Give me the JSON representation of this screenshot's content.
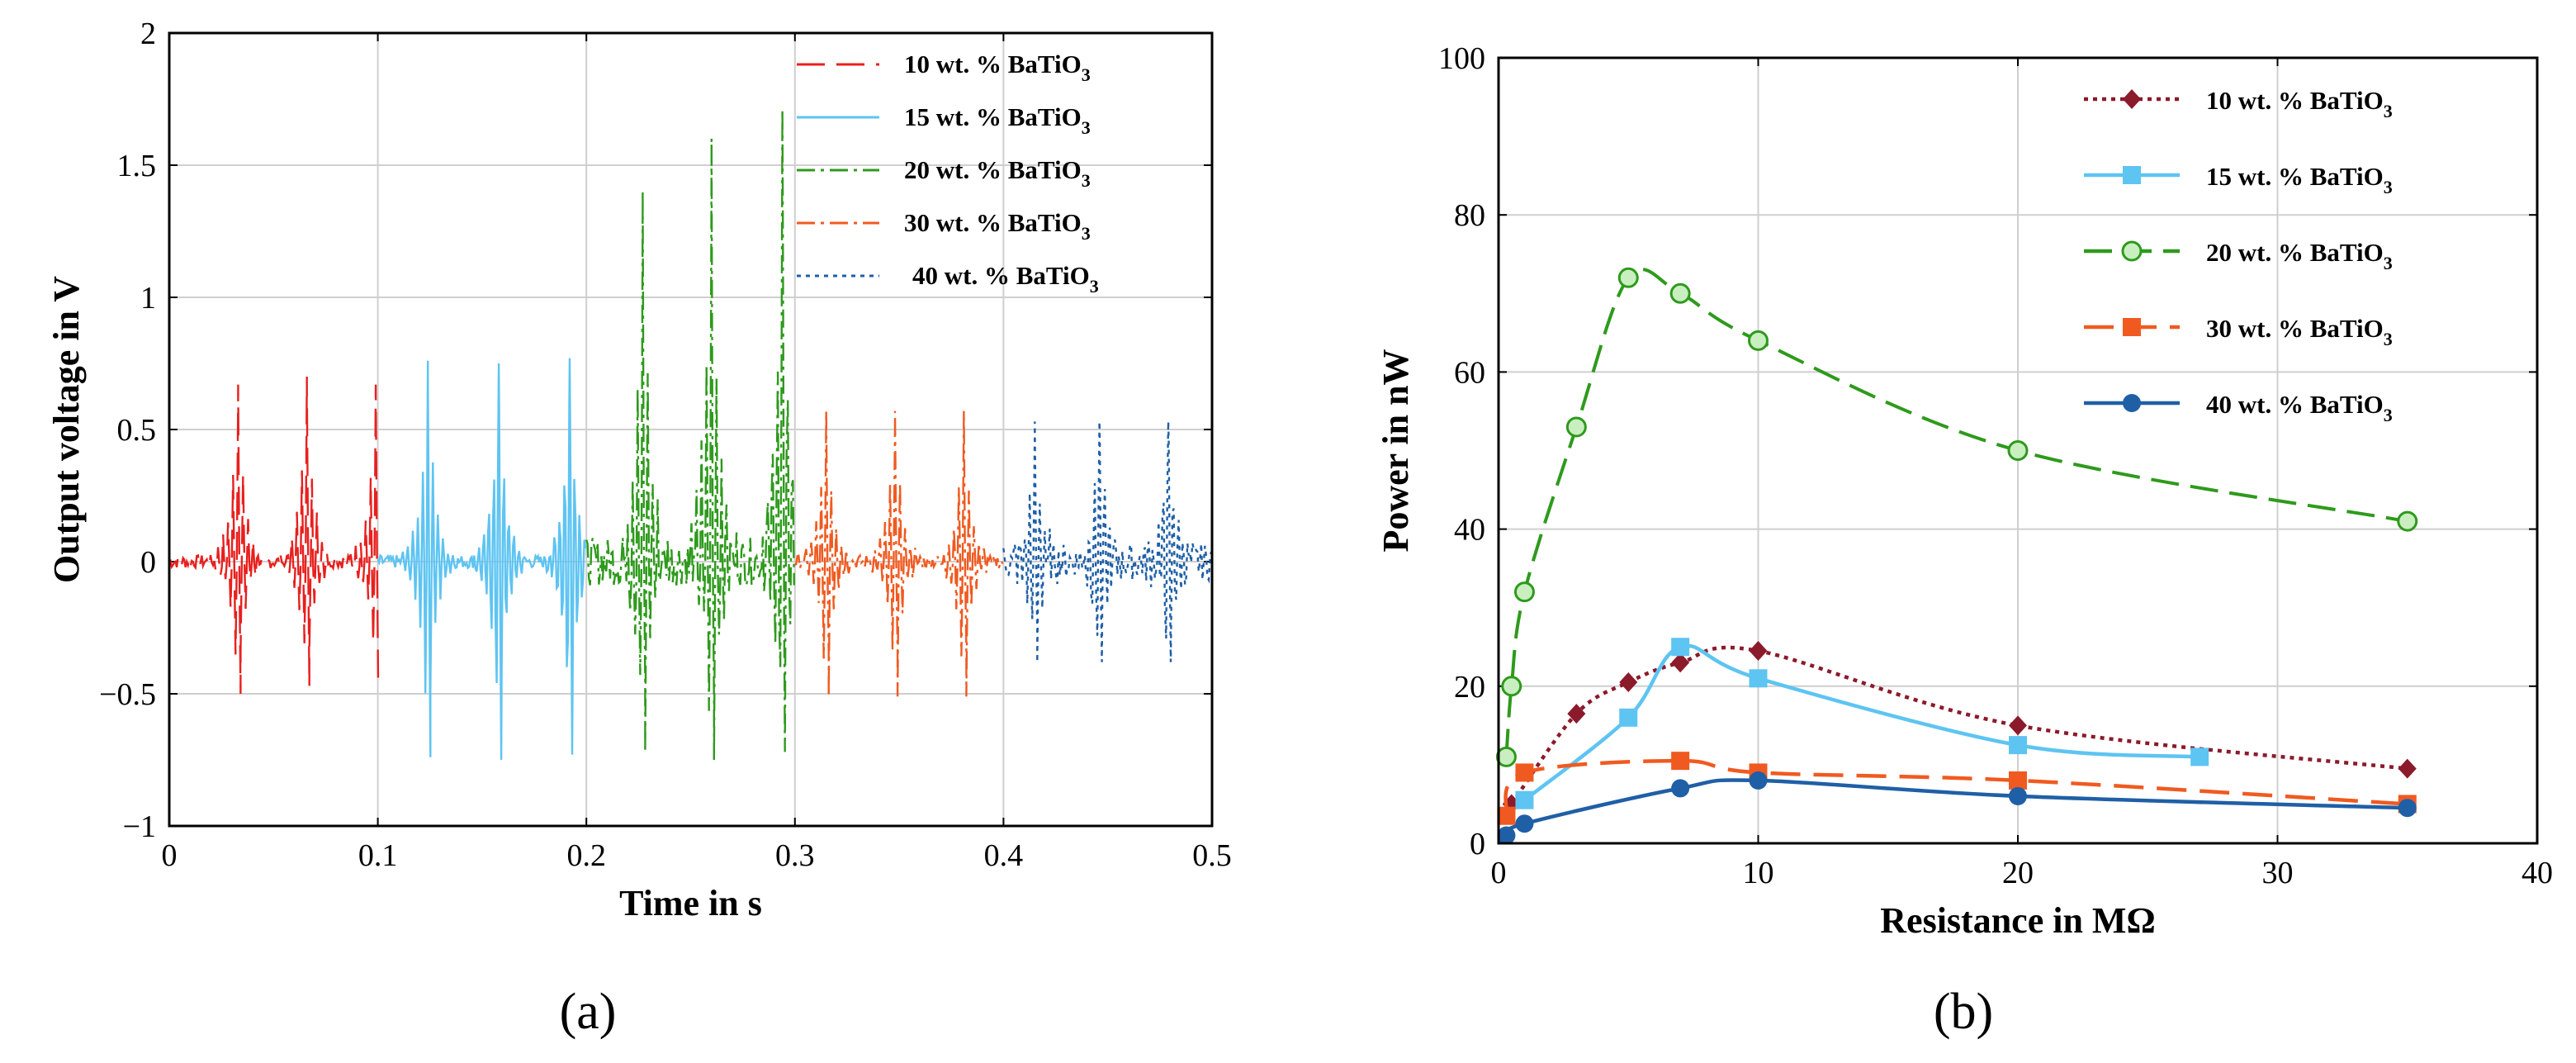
{
  "chart_data": [
    {
      "panel": "a",
      "type": "line",
      "xlabel": "Time in s",
      "ylabel": "Output voltage in V",
      "xlim": [
        0,
        0.5
      ],
      "ylim": [
        -1,
        2
      ],
      "xticks": [
        "0",
        "0.1",
        "0.2",
        "0.3",
        "0.4",
        "0.5"
      ],
      "yticks": [
        "−1",
        "−0.5",
        "0",
        "0.5",
        "1",
        "1.5",
        "2"
      ],
      "grid": true,
      "legend_position": "top-right",
      "series": [
        {
          "name": "10 wt. % BaTiO3",
          "label_main": "10 wt. % BaTiO",
          "label_sub": "3",
          "color": "#e8201e",
          "style": "dashed",
          "time_range": [
            0.0,
            0.1
          ],
          "peaks": [
            {
              "t": 0.033,
              "max": 0.67,
              "min": -0.5
            },
            {
              "t": 0.066,
              "max": 0.7,
              "min": -0.47
            },
            {
              "t": 0.099,
              "max": 0.67,
              "min": -0.48
            }
          ]
        },
        {
          "name": "15 wt. % BaTiO3",
          "label_main": "15 wt. % BaTiO",
          "label_sub": "3",
          "color": "#5ec4f2",
          "style": "solid",
          "time_range": [
            0.1,
            0.2
          ],
          "peaks": [
            {
              "t": 0.124,
              "max": 0.76,
              "min": -0.74
            },
            {
              "t": 0.158,
              "max": 0.75,
              "min": -0.75
            },
            {
              "t": 0.192,
              "max": 0.77,
              "min": -0.73
            }
          ]
        },
        {
          "name": "20 wt. % BaTiO3",
          "label_main": "20 wt. % BaTiO",
          "label_sub": "3",
          "color": "#2e9a1c",
          "style": "dashdot",
          "time_range": [
            0.2,
            0.3
          ],
          "peaks": [
            {
              "t": 0.227,
              "max": 1.4,
              "min": -0.72
            },
            {
              "t": 0.26,
              "max": 1.6,
              "min": -0.75
            },
            {
              "t": 0.294,
              "max": 1.71,
              "min": -0.72
            }
          ]
        },
        {
          "name": "30 wt. % BaTiO3",
          "label_main": "30 wt. % BaTiO",
          "label_sub": "3",
          "color": "#f05a20",
          "style": "dashdot",
          "time_range": [
            0.3,
            0.4
          ],
          "peaks": [
            {
              "t": 0.315,
              "max": 0.57,
              "min": -0.51
            },
            {
              "t": 0.348,
              "max": 0.57,
              "min": -0.51
            },
            {
              "t": 0.381,
              "max": 0.57,
              "min": -0.51
            }
          ]
        },
        {
          "name": "40 wt. % BaTiO3",
          "label_main": "40 wt. % BaTiO",
          "label_sub": "3",
          "color": "#1f5fa6",
          "style": "dotted",
          "time_range": [
            0.4,
            0.5
          ],
          "peaks": [
            {
              "t": 0.415,
              "max": 0.53,
              "min": -0.38
            },
            {
              "t": 0.446,
              "max": 0.53,
              "min": -0.38
            },
            {
              "t": 0.479,
              "max": 0.53,
              "min": -0.38
            }
          ]
        }
      ]
    },
    {
      "panel": "b",
      "type": "line",
      "xlabel": "Resistance in MΩ",
      "ylabel": "Power in nW",
      "xlim": [
        0,
        40
      ],
      "ylim": [
        0,
        100
      ],
      "xticks": [
        "0",
        "10",
        "20",
        "30",
        "40"
      ],
      "yticks": [
        "0",
        "20",
        "40",
        "60",
        "80",
        "100"
      ],
      "grid": true,
      "legend_position": "top-right",
      "series": [
        {
          "name": "10 wt. % BaTiO3",
          "label_main": "10 wt. % BaTiO",
          "label_sub": "3",
          "color": "#8b1a2b",
          "line": "dotted",
          "marker": "diamond",
          "x": [
            0.5,
            3,
            5,
            7,
            10,
            20,
            35
          ],
          "y": [
            5,
            16.5,
            20.5,
            23,
            24.5,
            15,
            9.5
          ]
        },
        {
          "name": "15 wt. % BaTiO3",
          "label_main": "15 wt. % BaTiO",
          "label_sub": "3",
          "color": "#5ec4f2",
          "line": "solid",
          "marker": "square",
          "x": [
            1,
            5,
            7,
            10,
            20,
            27
          ],
          "y": [
            5.5,
            16,
            25,
            21,
            12.5,
            11
          ]
        },
        {
          "name": "20 wt. % BaTiO3",
          "label_main": "20 wt. % BaTiO",
          "label_sub": "3",
          "color": "#2e9a1c",
          "line": "dashed",
          "marker": "circle-open",
          "x": [
            0.3,
            0.5,
            1,
            3,
            5,
            7,
            10,
            20,
            35
          ],
          "y": [
            11,
            20,
            32,
            53,
            72,
            70,
            64,
            50,
            41
          ]
        },
        {
          "name": "30 wt. % BaTiO3",
          "label_main": "30 wt. % BaTiO",
          "label_sub": "3",
          "color": "#f05a20",
          "line": "longdash",
          "marker": "square",
          "x": [
            0.3,
            1,
            7,
            10,
            20,
            35
          ],
          "y": [
            3.5,
            9,
            10.5,
            9,
            8,
            5
          ]
        },
        {
          "name": "40 wt. % BaTiO3",
          "label_main": "40 wt. % BaTiO",
          "label_sub": "3",
          "color": "#1f5fa6",
          "line": "solid",
          "marker": "circle",
          "x": [
            0.3,
            1,
            7,
            10,
            20,
            35
          ],
          "y": [
            1,
            2.5,
            7,
            8,
            6,
            4.5
          ]
        }
      ]
    }
  ],
  "captions": {
    "a": "(a)",
    "b": "(b)"
  }
}
